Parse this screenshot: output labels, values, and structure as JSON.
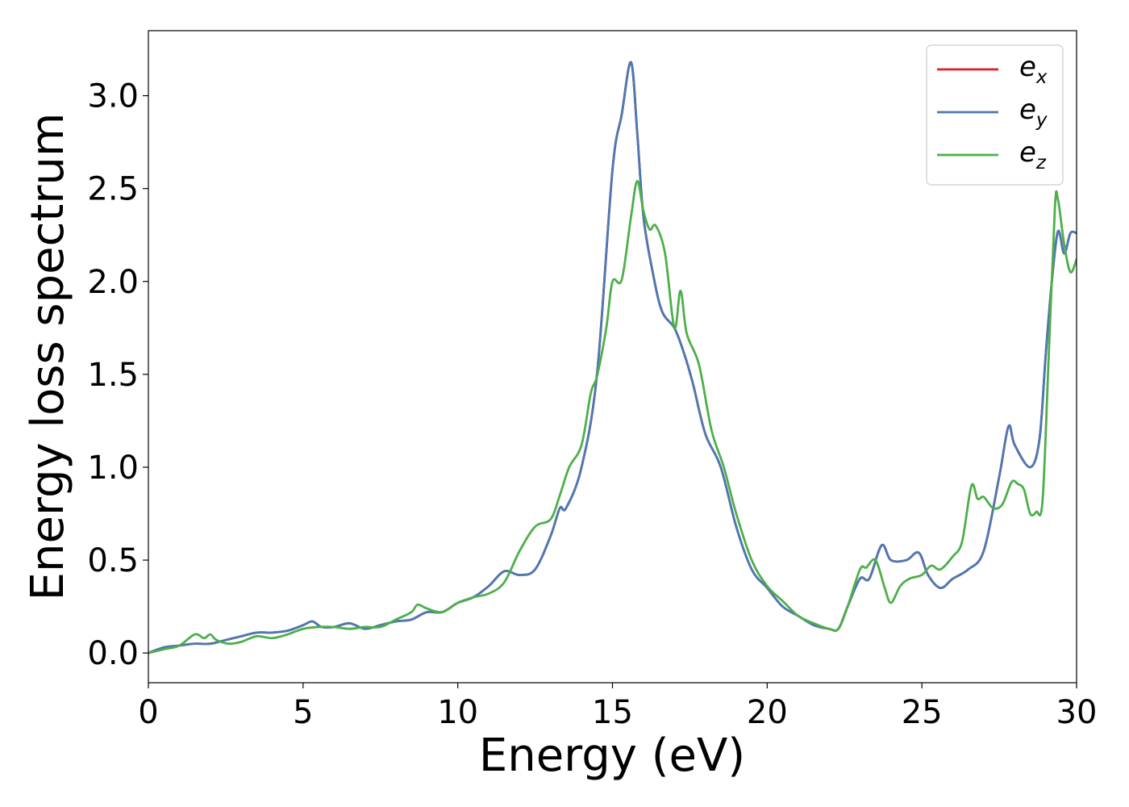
{
  "chart_data": {
    "type": "line",
    "title": "",
    "xlabel": "Energy (eV)",
    "ylabel": "Energy loss spectrum",
    "xlim": [
      0,
      30
    ],
    "ylim": [
      -0.16,
      3.35
    ],
    "xticks": [
      0,
      5,
      10,
      15,
      20,
      25,
      30
    ],
    "yticks": [
      0.0,
      0.5,
      1.0,
      1.5,
      2.0,
      2.5,
      3.0
    ],
    "xtick_labels": [
      "0",
      "5",
      "10",
      "15",
      "20",
      "25",
      "30"
    ],
    "ytick_labels": [
      "0.0",
      "0.5",
      "1.0",
      "1.5",
      "2.0",
      "2.5",
      "3.0"
    ],
    "grid": false,
    "legend_position": "top-right",
    "series": [
      {
        "name": "e_x",
        "label_base": "e",
        "label_sub": "x",
        "color": "#e41a1c",
        "x": [
          0,
          0.5,
          1.0,
          1.5,
          2.0,
          2.5,
          3.0,
          3.5,
          4.0,
          4.5,
          5.0,
          5.3,
          5.6,
          6.0,
          6.5,
          7.0,
          7.5,
          8.0,
          8.5,
          9.0,
          9.5,
          10.0,
          10.5,
          11.0,
          11.5,
          12.0,
          12.5,
          13.0,
          13.3,
          13.5,
          14.0,
          14.5,
          15.0,
          15.3,
          15.6,
          15.8,
          16.0,
          16.3,
          16.6,
          17.0,
          17.3,
          17.6,
          18.0,
          18.5,
          19.0,
          19.5,
          20.0,
          20.5,
          21.0,
          21.5,
          22.0,
          22.3,
          22.6,
          23.0,
          23.3,
          23.7,
          24.0,
          24.5,
          24.9,
          25.2,
          25.6,
          26.0,
          26.5,
          27.0,
          27.5,
          27.8,
          28.0,
          28.5,
          28.8,
          29.0,
          29.2,
          29.4,
          29.6,
          29.8,
          30.0
        ],
        "y": [
          0.0,
          0.03,
          0.04,
          0.05,
          0.05,
          0.07,
          0.09,
          0.11,
          0.11,
          0.12,
          0.15,
          0.17,
          0.14,
          0.14,
          0.16,
          0.13,
          0.15,
          0.17,
          0.18,
          0.22,
          0.22,
          0.27,
          0.3,
          0.36,
          0.44,
          0.42,
          0.45,
          0.63,
          0.78,
          0.78,
          1.0,
          1.5,
          2.6,
          2.9,
          3.18,
          2.8,
          2.35,
          2.05,
          1.84,
          1.75,
          1.62,
          1.45,
          1.18,
          1.0,
          0.68,
          0.45,
          0.35,
          0.25,
          0.2,
          0.15,
          0.13,
          0.13,
          0.25,
          0.4,
          0.4,
          0.58,
          0.5,
          0.5,
          0.54,
          0.42,
          0.35,
          0.4,
          0.45,
          0.55,
          0.95,
          1.22,
          1.12,
          1.0,
          1.15,
          1.6,
          2.0,
          2.27,
          2.15,
          2.26,
          2.26
        ]
      },
      {
        "name": "e_y",
        "label_base": "e",
        "label_sub": "y",
        "color": "#4a79b4",
        "x": [
          0,
          0.5,
          1.0,
          1.5,
          2.0,
          2.5,
          3.0,
          3.5,
          4.0,
          4.5,
          5.0,
          5.3,
          5.6,
          6.0,
          6.5,
          7.0,
          7.5,
          8.0,
          8.5,
          9.0,
          9.5,
          10.0,
          10.5,
          11.0,
          11.5,
          12.0,
          12.5,
          13.0,
          13.3,
          13.5,
          14.0,
          14.5,
          15.0,
          15.3,
          15.6,
          15.8,
          16.0,
          16.3,
          16.6,
          17.0,
          17.3,
          17.6,
          18.0,
          18.5,
          19.0,
          19.5,
          20.0,
          20.5,
          21.0,
          21.5,
          22.0,
          22.3,
          22.6,
          23.0,
          23.3,
          23.7,
          24.0,
          24.5,
          24.9,
          25.2,
          25.6,
          26.0,
          26.5,
          27.0,
          27.5,
          27.8,
          28.0,
          28.5,
          28.8,
          29.0,
          29.2,
          29.4,
          29.6,
          29.8,
          30.0
        ],
        "y": [
          0.0,
          0.03,
          0.04,
          0.05,
          0.05,
          0.07,
          0.09,
          0.11,
          0.11,
          0.12,
          0.15,
          0.17,
          0.14,
          0.14,
          0.16,
          0.13,
          0.15,
          0.17,
          0.18,
          0.22,
          0.22,
          0.27,
          0.3,
          0.36,
          0.44,
          0.42,
          0.45,
          0.63,
          0.78,
          0.78,
          1.0,
          1.5,
          2.6,
          2.9,
          3.18,
          2.8,
          2.35,
          2.05,
          1.84,
          1.75,
          1.62,
          1.45,
          1.18,
          1.0,
          0.68,
          0.45,
          0.35,
          0.25,
          0.2,
          0.15,
          0.13,
          0.13,
          0.25,
          0.4,
          0.4,
          0.58,
          0.5,
          0.5,
          0.54,
          0.42,
          0.35,
          0.4,
          0.45,
          0.55,
          0.95,
          1.22,
          1.12,
          1.0,
          1.15,
          1.6,
          2.0,
          2.27,
          2.15,
          2.26,
          2.26
        ]
      },
      {
        "name": "e_z",
        "label_base": "e",
        "label_sub": "z",
        "color": "#4daf4a",
        "x": [
          0,
          0.5,
          1.0,
          1.5,
          1.8,
          2.0,
          2.2,
          2.6,
          3.0,
          3.5,
          4.0,
          4.5,
          5.0,
          5.5,
          6.0,
          6.5,
          7.0,
          7.5,
          8.0,
          8.5,
          8.7,
          9.0,
          9.5,
          10.0,
          10.5,
          11.0,
          11.5,
          12.0,
          12.5,
          13.0,
          13.3,
          13.6,
          14.0,
          14.3,
          14.5,
          14.8,
          15.0,
          15.3,
          15.6,
          15.8,
          16.0,
          16.2,
          16.4,
          16.7,
          17.0,
          17.2,
          17.4,
          17.8,
          18.2,
          18.6,
          19.0,
          19.5,
          20.0,
          20.5,
          21.0,
          21.5,
          22.0,
          22.3,
          22.6,
          23.0,
          23.2,
          23.5,
          23.8,
          24.0,
          24.3,
          24.6,
          25.0,
          25.3,
          25.6,
          26.0,
          26.3,
          26.6,
          26.8,
          27.0,
          27.3,
          27.6,
          27.9,
          28.1,
          28.3,
          28.5,
          28.7,
          28.9,
          29.1,
          29.3,
          29.4,
          29.6,
          29.8,
          30.0
        ],
        "y": [
          0.0,
          0.02,
          0.04,
          0.1,
          0.08,
          0.1,
          0.07,
          0.05,
          0.06,
          0.09,
          0.08,
          0.1,
          0.13,
          0.14,
          0.14,
          0.13,
          0.14,
          0.14,
          0.18,
          0.22,
          0.26,
          0.24,
          0.22,
          0.27,
          0.3,
          0.32,
          0.38,
          0.55,
          0.68,
          0.72,
          0.85,
          1.0,
          1.12,
          1.4,
          1.49,
          1.75,
          2.0,
          2.01,
          2.35,
          2.54,
          2.38,
          2.28,
          2.3,
          2.15,
          1.75,
          1.95,
          1.72,
          1.55,
          1.2,
          1.0,
          0.75,
          0.5,
          0.36,
          0.28,
          0.2,
          0.16,
          0.13,
          0.13,
          0.25,
          0.45,
          0.46,
          0.5,
          0.35,
          0.27,
          0.36,
          0.4,
          0.42,
          0.47,
          0.45,
          0.52,
          0.6,
          0.9,
          0.83,
          0.84,
          0.78,
          0.8,
          0.92,
          0.91,
          0.88,
          0.75,
          0.76,
          0.82,
          1.6,
          2.4,
          2.44,
          2.2,
          2.05,
          2.12
        ]
      }
    ]
  }
}
